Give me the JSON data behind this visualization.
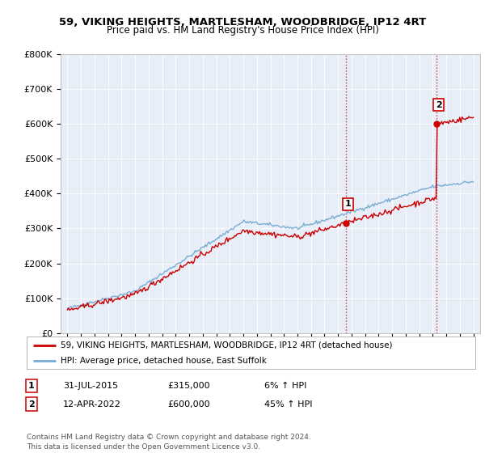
{
  "title": "59, VIKING HEIGHTS, MARTLESHAM, WOODBRIDGE, IP12 4RT",
  "subtitle": "Price paid vs. HM Land Registry's House Price Index (HPI)",
  "ylim": [
    0,
    800000
  ],
  "yticks": [
    0,
    100000,
    200000,
    300000,
    400000,
    500000,
    600000,
    700000,
    800000
  ],
  "ytick_labels": [
    "£0",
    "£100K",
    "£200K",
    "£300K",
    "£400K",
    "£500K",
    "£600K",
    "£700K",
    "£800K"
  ],
  "sale1_date": 2015.58,
  "sale1_price": 315000,
  "sale2_date": 2022.28,
  "sale2_price": 600000,
  "hpi_color": "#7aadd4",
  "price_color": "#cc0000",
  "vline_color": "#cc0000",
  "plot_bg_color": "#e8eef8",
  "legend_label1": "59, VIKING HEIGHTS, MARTLESHAM, WOODBRIDGE, IP12 4RT (detached house)",
  "legend_label2": "HPI: Average price, detached house, East Suffolk",
  "sale_info": [
    {
      "num": "1",
      "date": "31-JUL-2015",
      "price": "£315,000",
      "change": "6% ↑ HPI"
    },
    {
      "num": "2",
      "date": "12-APR-2022",
      "price": "£600,000",
      "change": "45% ↑ HPI"
    }
  ],
  "footer": "Contains HM Land Registry data © Crown copyright and database right 2024.\nThis data is licensed under the Open Government Licence v3.0.",
  "figwidth": 6.0,
  "figheight": 5.6,
  "dpi": 100
}
